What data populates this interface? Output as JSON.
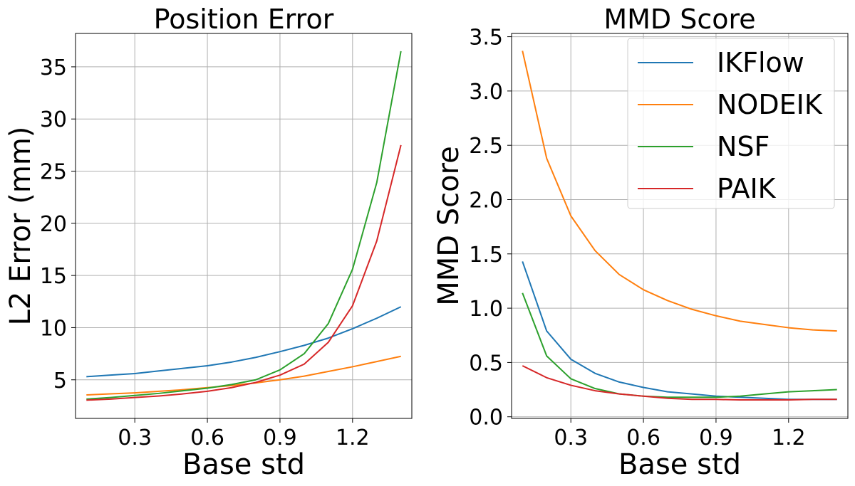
{
  "chart_data": [
    {
      "type": "line",
      "title": "Position Error",
      "xlabel": "Base std",
      "ylabel": "L2 Error (mm)",
      "xlim": [
        0.055,
        1.445
      ],
      "ylim": [
        1.3,
        38.2
      ],
      "xticks": [
        0.3,
        0.6,
        0.9,
        1.2
      ],
      "xtick_labels": [
        "0.3",
        "0.6",
        "0.9",
        "1.2"
      ],
      "yticks": [
        5,
        10,
        15,
        20,
        25,
        30,
        35
      ],
      "ytick_labels": [
        "5",
        "10",
        "15",
        "20",
        "25",
        "30",
        "35"
      ],
      "grid": true,
      "legend": false,
      "x": [
        0.1,
        0.2,
        0.3,
        0.4,
        0.5,
        0.6,
        0.7,
        0.8,
        0.9,
        1.0,
        1.1,
        1.2,
        1.3,
        1.4
      ],
      "series": [
        {
          "name": "IKFlow",
          "color": "#1f77b4",
          "values": [
            5.3,
            5.45,
            5.6,
            5.85,
            6.1,
            6.35,
            6.7,
            7.15,
            7.7,
            8.3,
            9.0,
            9.9,
            10.9,
            12.0
          ]
        },
        {
          "name": "NODEIK",
          "color": "#ff7f0e",
          "values": [
            3.55,
            3.65,
            3.75,
            3.9,
            4.05,
            4.25,
            4.45,
            4.7,
            5.0,
            5.35,
            5.8,
            6.25,
            6.75,
            7.25
          ]
        },
        {
          "name": "NSF",
          "color": "#2ca02c",
          "values": [
            3.15,
            3.3,
            3.5,
            3.7,
            3.95,
            4.2,
            4.55,
            5.0,
            5.95,
            7.5,
            10.4,
            15.6,
            23.9,
            36.5
          ]
        },
        {
          "name": "PAIK",
          "color": "#d62728",
          "values": [
            3.05,
            3.15,
            3.3,
            3.45,
            3.65,
            3.9,
            4.25,
            4.75,
            5.45,
            6.5,
            8.6,
            12.1,
            18.3,
            27.5
          ]
        }
      ]
    },
    {
      "type": "line",
      "title": "MMD Score",
      "xlabel": "Base std",
      "ylabel": "MMD Score",
      "xlim": [
        0.055,
        1.445
      ],
      "ylim": [
        -0.015,
        3.53
      ],
      "xticks": [
        0.3,
        0.6,
        0.9,
        1.2
      ],
      "xtick_labels": [
        "0.3",
        "0.6",
        "0.9",
        "1.2"
      ],
      "yticks": [
        0.0,
        0.5,
        1.0,
        1.5,
        2.0,
        2.5,
        3.0,
        3.5
      ],
      "ytick_labels": [
        "0.0",
        "0.5",
        "1.0",
        "1.5",
        "2.0",
        "2.5",
        "3.0",
        "3.5"
      ],
      "grid": true,
      "legend": true,
      "legend_placement": "top-right",
      "x": [
        0.1,
        0.2,
        0.3,
        0.4,
        0.5,
        0.6,
        0.7,
        0.8,
        0.9,
        1.0,
        1.1,
        1.2,
        1.3,
        1.4
      ],
      "series": [
        {
          "name": "IKFlow",
          "color": "#1f77b4",
          "values": [
            1.43,
            0.79,
            0.53,
            0.4,
            0.32,
            0.27,
            0.23,
            0.21,
            0.19,
            0.18,
            0.17,
            0.16,
            0.16,
            0.16
          ]
        },
        {
          "name": "NODEIK",
          "color": "#ff7f0e",
          "values": [
            3.37,
            2.38,
            1.85,
            1.53,
            1.31,
            1.17,
            1.07,
            0.99,
            0.93,
            0.88,
            0.85,
            0.82,
            0.8,
            0.79
          ]
        },
        {
          "name": "NSF",
          "color": "#2ca02c",
          "values": [
            1.14,
            0.56,
            0.35,
            0.26,
            0.21,
            0.19,
            0.18,
            0.18,
            0.18,
            0.19,
            0.21,
            0.23,
            0.24,
            0.25
          ]
        },
        {
          "name": "PAIK",
          "color": "#d62728",
          "values": [
            0.47,
            0.36,
            0.29,
            0.24,
            0.21,
            0.19,
            0.17,
            0.16,
            0.16,
            0.155,
            0.155,
            0.155,
            0.16,
            0.16
          ]
        }
      ]
    }
  ]
}
